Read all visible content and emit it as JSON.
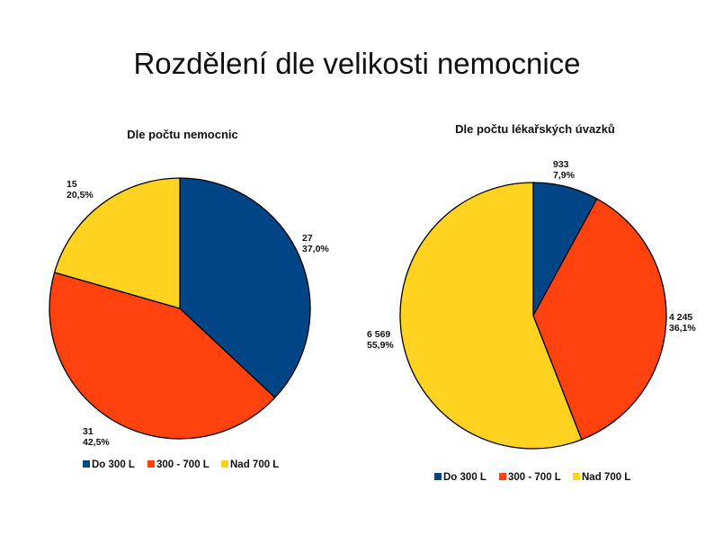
{
  "slide_title": "Rozdělení dle velikosti nemocnice",
  "colors": {
    "do300": "#004586",
    "300to700": "#ff420e",
    "nad700": "#ffd320"
  },
  "chart_data": [
    {
      "type": "pie",
      "title": "Dle počtu nemocnic",
      "legend_position": "bottom",
      "slices": [
        {
          "name": "Do 300 L",
          "value": 27,
          "label_value": "27",
          "label_pct": "37,0%"
        },
        {
          "name": "300 - 700 L",
          "value": 31,
          "label_value": "31",
          "label_pct": "42,5%"
        },
        {
          "name": "Nad 700 L",
          "value": 15,
          "label_value": "15",
          "label_pct": "20,5%"
        }
      ]
    },
    {
      "type": "pie",
      "title": "Dle počtu lékařských úvazků",
      "legend_position": "bottom",
      "slices": [
        {
          "name": "Do 300 L",
          "value": 933,
          "label_value": "933",
          "label_pct": "7,9%"
        },
        {
          "name": "300 - 700 L",
          "value": 4245,
          "label_value": "4 245",
          "label_pct": "36,1%"
        },
        {
          "name": "Nad 700 L",
          "value": 6569,
          "label_value": "6 569",
          "label_pct": "55,9%"
        }
      ]
    }
  ]
}
